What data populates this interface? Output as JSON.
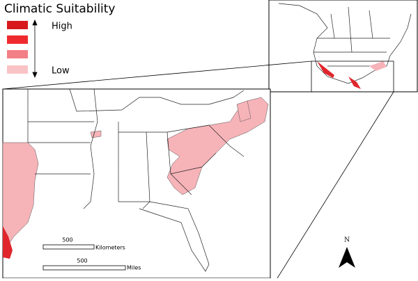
{
  "legend": {
    "title": "Climatic Suitability",
    "high_label": "High",
    "low_label": "Low"
  },
  "scale_bar": {
    "km_value": 500,
    "km_unit": "Kilometers",
    "mi_value": 500,
    "mi_unit": "Miles"
  },
  "north_arrow": {
    "label": "N"
  }
}
